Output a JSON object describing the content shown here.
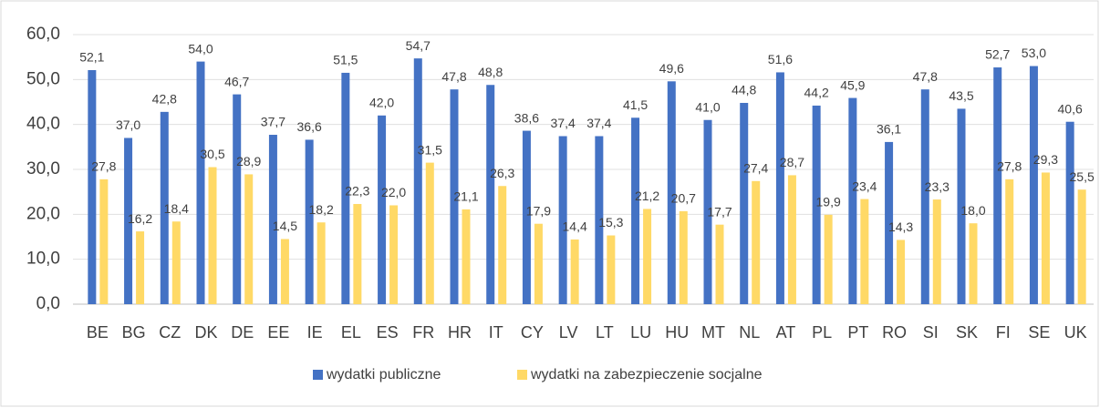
{
  "chart_data": {
    "type": "bar",
    "categories": [
      "BE",
      "BG",
      "CZ",
      "DK",
      "DE",
      "EE",
      "IE",
      "EL",
      "ES",
      "FR",
      "HR",
      "IT",
      "CY",
      "LV",
      "LT",
      "LU",
      "HU",
      "MT",
      "NL",
      "AT",
      "PL",
      "PT",
      "RO",
      "SI",
      "SK",
      "FI",
      "SE",
      "UK"
    ],
    "series": [
      {
        "name": "wydatki publiczne",
        "color": "#4472c4",
        "values": [
          52.1,
          37.0,
          42.8,
          54.0,
          46.7,
          37.7,
          36.6,
          51.5,
          42.0,
          54.7,
          47.8,
          48.8,
          38.6,
          37.4,
          37.4,
          41.5,
          49.6,
          41.0,
          44.8,
          51.6,
          44.2,
          45.9,
          36.1,
          47.8,
          43.5,
          52.7,
          53.0,
          40.6
        ],
        "value_labels": [
          "52,1",
          "37,0",
          "42,8",
          "54,0",
          "46,7",
          "37,7",
          "36,6",
          "51,5",
          "42,0",
          "54,7",
          "47,8",
          "48,8",
          "38,6",
          "37,4",
          "37,4",
          "41,5",
          "49,6",
          "41,0",
          "44,8",
          "51,6",
          "44,2",
          "45,9",
          "36,1",
          "47,8",
          "43,5",
          "52,7",
          "53,0",
          "40,6"
        ]
      },
      {
        "name": "wydatki na zabezpieczenie socjalne",
        "color": "#ffd966",
        "values": [
          27.8,
          16.2,
          18.4,
          30.5,
          28.9,
          14.5,
          18.2,
          22.3,
          22.0,
          31.5,
          21.1,
          26.3,
          17.9,
          14.4,
          15.3,
          21.2,
          20.7,
          17.7,
          27.4,
          28.7,
          19.9,
          23.4,
          14.3,
          23.3,
          18.0,
          27.8,
          29.3,
          25.5
        ],
        "value_labels": [
          "27,8",
          "16,2",
          "18,4",
          "30,5",
          "28,9",
          "14,5",
          "18,2",
          "22,3",
          "22,0",
          "31,5",
          "21,1",
          "26,3",
          "17,9",
          "14,4",
          "15,3",
          "21,2",
          "20,7",
          "17,7",
          "27,4",
          "28,7",
          "19,9",
          "23,4",
          "14,3",
          "23,3",
          "18,0",
          "27,8",
          "29,3",
          "25,5"
        ]
      }
    ],
    "ylim": [
      0,
      60
    ],
    "yticks": [
      {
        "value": 0,
        "label": "0,0"
      },
      {
        "value": 10,
        "label": "10,0"
      },
      {
        "value": 20,
        "label": "20,0"
      },
      {
        "value": 30,
        "label": "30,0"
      },
      {
        "value": 40,
        "label": "40,0"
      },
      {
        "value": 50,
        "label": "50,0"
      },
      {
        "value": 60,
        "label": "60,0"
      }
    ],
    "grid": true,
    "legend": "bottom"
  }
}
